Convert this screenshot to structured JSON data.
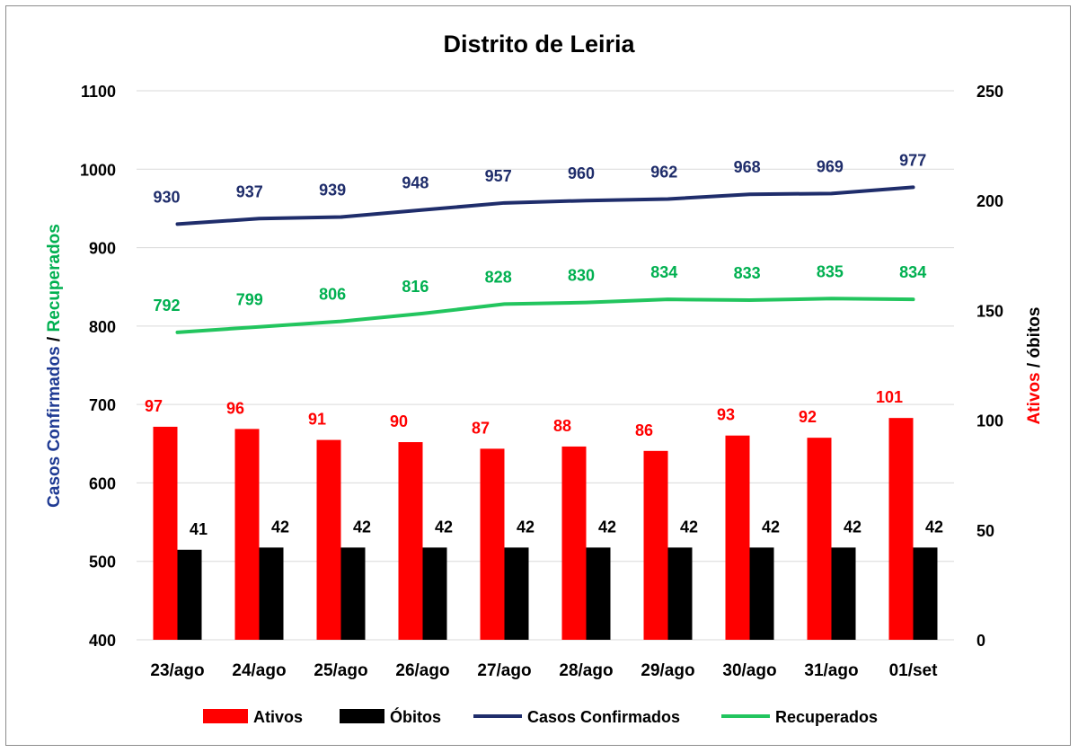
{
  "chart_data": {
    "type": "bar",
    "title": "Distrito de Leiria",
    "categories": [
      "23/ago",
      "24/ago",
      "25/ago",
      "26/ago",
      "27/ago",
      "28/ago",
      "29/ago",
      "30/ago",
      "31/ago",
      "01/set"
    ],
    "y_left": {
      "label_part1": "Casos Confirmados",
      "label_sep": " / ",
      "label_part2": "Recuperados",
      "range": [
        400,
        1100
      ],
      "ticks": [
        400,
        500,
        600,
        700,
        800,
        900,
        1000,
        1100
      ]
    },
    "y_right": {
      "label_part1": "Ativos",
      "label_sep": " / ",
      "label_part2": "óbitos",
      "range": [
        0,
        250
      ],
      "ticks": [
        0,
        50,
        100,
        150,
        200,
        250
      ]
    },
    "grid": true,
    "legend_position": "bottom",
    "series": [
      {
        "name": "Ativos",
        "kind": "bar",
        "axis": "right",
        "color": "#ff0000",
        "label_color": "#ff0000",
        "values": [
          97,
          96,
          91,
          90,
          87,
          88,
          86,
          93,
          92,
          101
        ]
      },
      {
        "name": "Óbitos",
        "kind": "bar",
        "axis": "right",
        "color": "#000000",
        "label_color": "#000000",
        "values": [
          41,
          42,
          42,
          42,
          42,
          42,
          42,
          42,
          42,
          42
        ]
      },
      {
        "name": "Casos Confirmados",
        "kind": "line",
        "axis": "left",
        "color": "#1f2d6b",
        "label_color": "#1f2d6b",
        "values": [
          930,
          937,
          939,
          948,
          957,
          960,
          962,
          968,
          969,
          977
        ]
      },
      {
        "name": "Recuperados",
        "kind": "line",
        "axis": "left",
        "color": "#22c55e",
        "label_color": "#00b050",
        "values": [
          792,
          799,
          806,
          816,
          828,
          830,
          834,
          833,
          835,
          834
        ]
      }
    ]
  }
}
